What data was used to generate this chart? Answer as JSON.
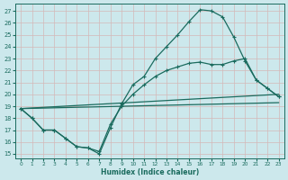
{
  "xlabel": "Humidex (Indice chaleur)",
  "bg_color": "#cce8ec",
  "grid_color": "#c8dfe0",
  "line_color": "#1a6b5e",
  "xlim": [
    -0.5,
    23.5
  ],
  "ylim": [
    14.6,
    27.6
  ],
  "xticks": [
    0,
    1,
    2,
    3,
    4,
    5,
    6,
    7,
    8,
    9,
    10,
    11,
    12,
    13,
    14,
    15,
    16,
    17,
    18,
    19,
    20,
    21,
    22,
    23
  ],
  "yticks": [
    15,
    16,
    17,
    18,
    19,
    20,
    21,
    22,
    23,
    24,
    25,
    26,
    27
  ],
  "curve1_x": [
    0,
    1,
    2,
    3,
    4,
    5,
    6,
    7,
    8,
    9,
    10,
    11,
    12,
    13,
    14,
    15,
    16,
    17,
    18,
    19,
    20,
    21,
    22,
    23
  ],
  "curve1_y": [
    18.8,
    18.0,
    17.0,
    17.0,
    16.3,
    15.6,
    15.5,
    15.0,
    17.2,
    19.2,
    20.8,
    21.5,
    23.0,
    24.0,
    25.0,
    26.1,
    27.1,
    27.0,
    26.5,
    24.8,
    22.8,
    21.2,
    20.5,
    19.8
  ],
  "curve2_x": [
    0,
    1,
    2,
    3,
    4,
    5,
    6,
    7,
    8,
    9,
    10,
    11,
    12,
    13,
    14,
    15,
    16,
    17,
    18,
    19,
    20,
    21,
    22,
    23
  ],
  "curve2_y": [
    18.8,
    18.0,
    17.0,
    17.0,
    16.3,
    15.6,
    15.5,
    15.2,
    17.5,
    19.0,
    20.0,
    20.8,
    21.5,
    22.0,
    22.3,
    22.6,
    22.7,
    22.5,
    22.5,
    22.8,
    23.0,
    21.2,
    20.5,
    19.8
  ],
  "line1_x": [
    0,
    23
  ],
  "line1_y": [
    18.8,
    20.0
  ],
  "line2_x": [
    0,
    23
  ],
  "line2_y": [
    18.8,
    19.3
  ]
}
